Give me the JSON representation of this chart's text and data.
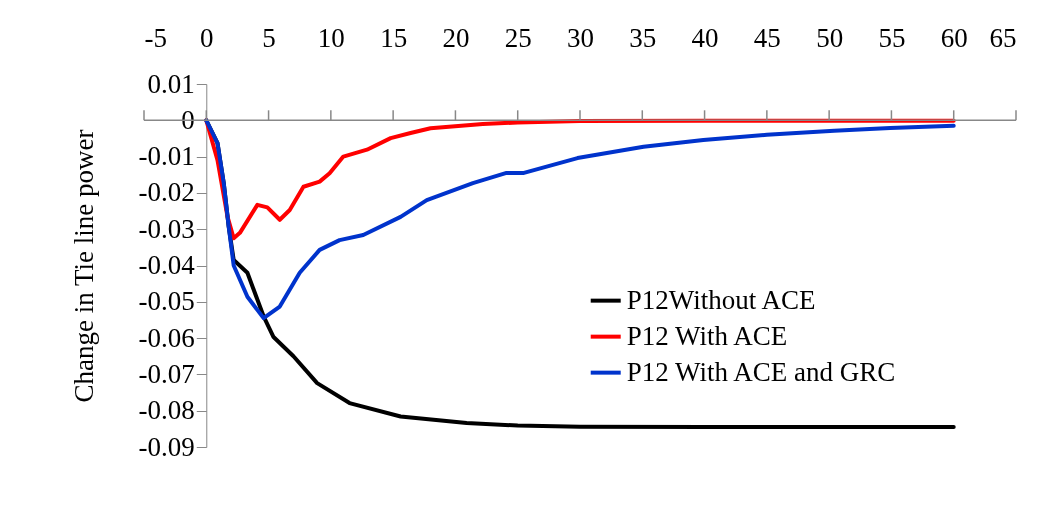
{
  "chart_data": {
    "type": "line",
    "ylabel": "Change in Tie line power",
    "xlim": [
      -5,
      65
    ],
    "xticks": [
      -5,
      0,
      5,
      10,
      15,
      20,
      25,
      30,
      35,
      40,
      45,
      50,
      55,
      60,
      65
    ],
    "ylim": [
      -0.09,
      0.01
    ],
    "yticks": [
      0.01,
      0,
      -0.01,
      -0.02,
      -0.03,
      -0.04,
      -0.05,
      -0.06,
      -0.07,
      -0.08,
      -0.09
    ],
    "grid": false,
    "legend": "bottom right",
    "marker": "none",
    "line_style": "solid",
    "series": [
      {
        "name": "P12Without ACE",
        "color": "#000000",
        "x": [
          0,
          0.9,
          1.4,
          1.8,
          2.2,
          3.3,
          4.6,
          5.4,
          7,
          8.9,
          11.5,
          15.6,
          20.9,
          25,
          30,
          40,
          50,
          60
        ],
        "values": [
          0,
          -0.0063,
          -0.0173,
          -0.0293,
          -0.0385,
          -0.042,
          -0.054,
          -0.0597,
          -0.065,
          -0.0724,
          -0.0779,
          -0.0816,
          -0.0834,
          -0.0841,
          -0.0844,
          -0.0845,
          -0.0845,
          -0.0845
        ]
      },
      {
        "name": "P12 With ACE",
        "color": "#ff0000",
        "x": [
          0,
          0.9,
          1.7,
          2.2,
          2.7,
          4.1,
          4.9,
          5.9,
          6.7,
          7.8,
          9.1,
          9.9,
          11,
          12.9,
          14.8,
          16.4,
          18,
          22.2,
          25,
          30,
          40,
          50,
          60
        ],
        "values": [
          0,
          -0.011,
          -0.0265,
          -0.0325,
          -0.031,
          -0.0233,
          -0.024,
          -0.0274,
          -0.0247,
          -0.0183,
          -0.0169,
          -0.0146,
          -0.01,
          -0.0081,
          -0.0049,
          -0.0035,
          -0.0022,
          -0.001,
          -0.0006,
          -0.0002,
          -0.0001,
          -0.0001,
          -0.0001
        ]
      },
      {
        "name": "P12 With ACE and GRC",
        "color": "#0033cc",
        "x": [
          0,
          0.9,
          1.4,
          1.8,
          2.2,
          3.3,
          4.6,
          5.9,
          7.5,
          9.1,
          10.7,
          12.6,
          15.6,
          17.7,
          21.4,
          24.1,
          25.5,
          29.8,
          35.1,
          39.9,
          45,
          50.4,
          54.9,
          60
        ],
        "values": [
          0,
          -0.0063,
          -0.0173,
          -0.0293,
          -0.04,
          -0.0486,
          -0.0545,
          -0.0513,
          -0.042,
          -0.0357,
          -0.033,
          -0.0316,
          -0.0266,
          -0.022,
          -0.0173,
          -0.0145,
          -0.0145,
          -0.0104,
          -0.0073,
          -0.0054,
          -0.004,
          -0.0029,
          -0.0021,
          -0.0015
        ]
      }
    ]
  }
}
